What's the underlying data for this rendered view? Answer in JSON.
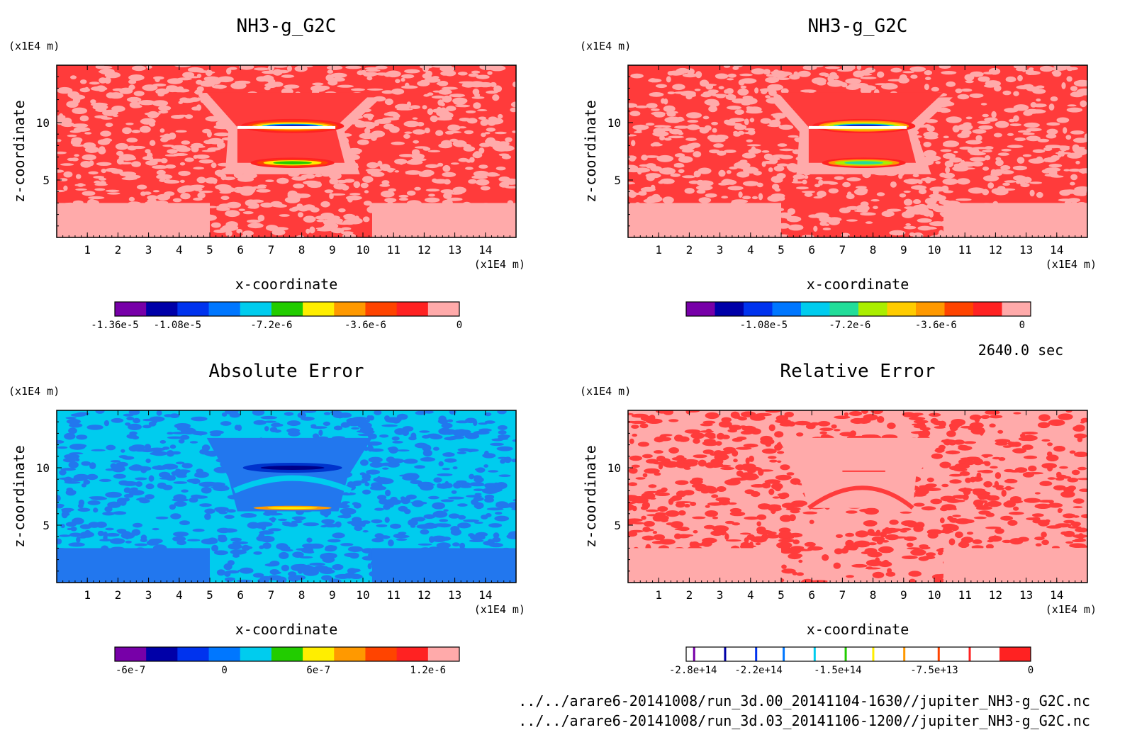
{
  "figure": {
    "time_label": "2640.0 sec",
    "file_paths": [
      "../../arare6-20141008/run_3d.00_20141104-1630//jupiter_NH3-g_G2C.nc",
      "../../arare6-20141008/run_3d.03_20141106-1200//jupiter_NH3-g_G2C.nc"
    ]
  },
  "chart_data": [
    {
      "type": "heatmap",
      "title": "NH3-g_G2C",
      "xlabel": "x-coordinate",
      "ylabel": "z-coordinate",
      "x_unit": "(x1E4 m)",
      "y_unit": "(x1E4 m)",
      "xlim": [
        0,
        15
      ],
      "ylim": [
        0,
        15
      ],
      "x_ticks": [
        1,
        2,
        3,
        4,
        5,
        6,
        7,
        8,
        9,
        10,
        11,
        12,
        13,
        14
      ],
      "y_ticks": [
        5,
        10
      ],
      "background_color": "#ff3b3b",
      "speckle_color": "#ffaaaa",
      "colors": [
        "#7700a8",
        "#0000a8",
        "#0033ee",
        "#0077ff",
        "#00ccee",
        "#22cc00",
        "#ffee00",
        "#ff9900",
        "#ff4400",
        "#ff2222",
        "#ffaaaa"
      ],
      "colorbar_labels": [
        "-1.36e-5",
        "-1.08e-5",
        "-7.2e-6",
        "-3.6e-6",
        "0"
      ],
      "colorbar_label_pos": [
        0,
        2,
        5,
        8,
        11
      ],
      "shapes": "trapezoid"
    },
    {
      "type": "heatmap",
      "title": "NH3-g_G2C",
      "xlabel": "x-coordinate",
      "ylabel": "z-coordinate",
      "x_unit": "(x1E4 m)",
      "y_unit": "(x1E4 m)",
      "xlim": [
        0,
        15
      ],
      "ylim": [
        0,
        15
      ],
      "x_ticks": [
        1,
        2,
        3,
        4,
        5,
        6,
        7,
        8,
        9,
        10,
        11,
        12,
        13,
        14
      ],
      "y_ticks": [
        5,
        10
      ],
      "background_color": "#ff3b3b",
      "speckle_color": "#ffaaaa",
      "colors": [
        "#7700a8",
        "#0000a8",
        "#0033ee",
        "#0077ff",
        "#00ccee",
        "#22dd99",
        "#aaee00",
        "#ffcc00",
        "#ff9900",
        "#ff4400",
        "#ff2222",
        "#ffaaaa"
      ],
      "colorbar_labels": [
        "-1.08e-5",
        "-7.2e-6",
        "-3.6e-6",
        "0"
      ],
      "colorbar_label_pos": [
        2.7,
        5.7,
        8.7,
        11.7
      ],
      "shapes": "trapezoid"
    },
    {
      "type": "heatmap",
      "title": "Absolute Error",
      "xlabel": "x-coordinate",
      "ylabel": "z-coordinate",
      "x_unit": "(x1E4 m)",
      "y_unit": "(x1E4 m)",
      "xlim": [
        0,
        15
      ],
      "ylim": [
        0,
        15
      ],
      "x_ticks": [
        1,
        2,
        3,
        4,
        5,
        6,
        7,
        8,
        9,
        10,
        11,
        12,
        13,
        14
      ],
      "y_ticks": [
        5,
        10
      ],
      "background_color": "#00ccee",
      "speckle_color": "#2277ee",
      "colors": [
        "#7700a8",
        "#0000a8",
        "#0033ee",
        "#0077ff",
        "#00ccee",
        "#22cc00",
        "#ffee00",
        "#ff9900",
        "#ff4400",
        "#ff2222",
        "#ffaaaa"
      ],
      "colorbar_labels": [
        "-6e-7",
        "0",
        "6e-7",
        "1.2e-6"
      ],
      "colorbar_label_pos": [
        0.5,
        3.5,
        6.5,
        10
      ],
      "shapes": "abs"
    },
    {
      "type": "heatmap",
      "title": "Relative Error",
      "xlabel": "x-coordinate",
      "ylabel": "z-coordinate",
      "x_unit": "(x1E4 m)",
      "y_unit": "(x1E4 m)",
      "xlim": [
        0,
        15
      ],
      "ylim": [
        0,
        15
      ],
      "x_ticks": [
        1,
        2,
        3,
        4,
        5,
        6,
        7,
        8,
        9,
        10,
        11,
        12,
        13,
        14
      ],
      "y_ticks": [
        5,
        10
      ],
      "background_color": "#ffaaaa",
      "speckle_color": "#ff3b3b",
      "colors": [
        "#7700a8",
        "#0000a8",
        "#0033ee",
        "#0077ff",
        "#00ccee",
        "#22cc00",
        "#ffee00",
        "#ff9900",
        "#ff4400",
        "#ff2222"
      ],
      "colorbar_labels": [
        "-2.8e+14",
        "-2.2e+14",
        "-1.5e+14",
        "-7.5e+13",
        "0"
      ],
      "colorbar_label_pos": [
        0.2,
        2.1,
        4.4,
        7.2,
        10
      ],
      "shapes": "rel"
    }
  ]
}
